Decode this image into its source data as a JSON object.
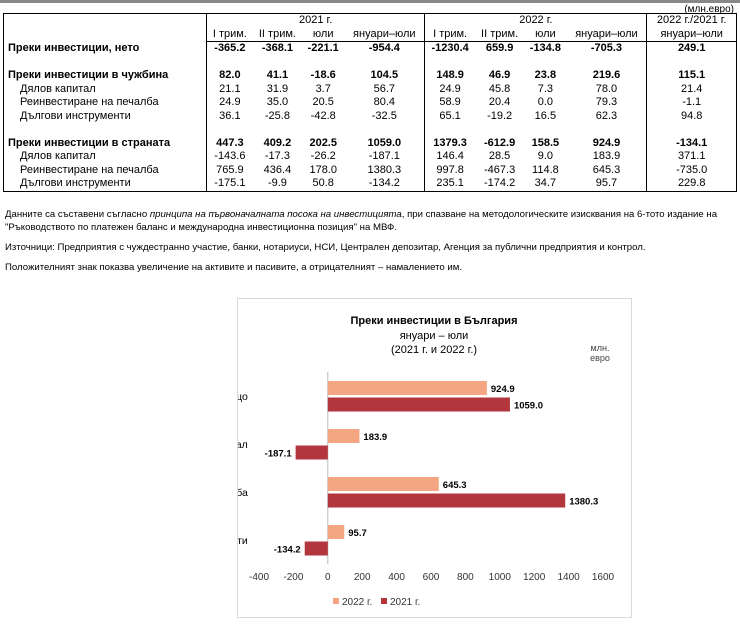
{
  "unit": "(млн.евро)",
  "table": {
    "year_headers": [
      "2021 г.",
      "2022 г.",
      "2022 г./2021 г."
    ],
    "sub_headers": [
      "I трим.",
      "II трим.",
      "юли",
      "януари–юли",
      "I трим.",
      "II трим.",
      "юли",
      "януари–юли",
      "януари–юли"
    ],
    "rows": [
      {
        "label": "Преки инвестиции, нето",
        "bold": true,
        "values": [
          "-365.2",
          "-368.1",
          "-221.1",
          "-954.4",
          "-1230.4",
          "659.9",
          "-134.8",
          "-705.3",
          "249.1"
        ]
      },
      {
        "spacer": true
      },
      {
        "label": "Преки инвестиции в чужбина",
        "bold": true,
        "values": [
          "82.0",
          "41.1",
          "-18.6",
          "104.5",
          "148.9",
          "46.9",
          "23.8",
          "219.6",
          "115.1"
        ]
      },
      {
        "label": "Дялов капитал",
        "values": [
          "21.1",
          "31.9",
          "3.7",
          "56.7",
          "24.9",
          "45.8",
          "7.3",
          "78.0",
          "21.4"
        ]
      },
      {
        "label": "Реинвестиране на печалба",
        "values": [
          "24.9",
          "35.0",
          "20.5",
          "80.4",
          "58.9",
          "20.4",
          "0.0",
          "79.3",
          "-1.1"
        ]
      },
      {
        "label": "Дългови инструменти",
        "values": [
          "36.1",
          "-25.8",
          "-42.8",
          "-32.5",
          "65.1",
          "-19.2",
          "16.5",
          "62.3",
          "94.8"
        ]
      },
      {
        "spacer": true
      },
      {
        "label": "Преки инвестиции в страната",
        "bold": true,
        "values": [
          "447.3",
          "409.2",
          "202.5",
          "1059.0",
          "1379.3",
          "-612.9",
          "158.5",
          "924.9",
          "-134.1"
        ]
      },
      {
        "label": "Дялов капитал",
        "values": [
          "-143.6",
          "-17.3",
          "-26.2",
          "-187.1",
          "146.4",
          "28.5",
          "9.0",
          "183.9",
          "371.1"
        ]
      },
      {
        "label": "Реинвестиране на печалба",
        "values": [
          "765.9",
          "436.4",
          "178.0",
          "1380.3",
          "997.8",
          "-467.3",
          "114.8",
          "645.3",
          "-735.0"
        ]
      },
      {
        "label": "Дългови инструменти",
        "values": [
          "-175.1",
          "-9.9",
          "50.8",
          "-134.2",
          "235.1",
          "-174.2",
          "34.7",
          "95.7",
          "229.8"
        ]
      }
    ]
  },
  "notes": {
    "n1_a": "Данните са съставени съгласно ",
    "n1_em": "принципа на първоначалната посока на инвестицията",
    "n1_b": ", при спазване на методологическите изисквания на 6-тото издание на \"Ръководството по платежен баланс и международна инвестиционна позиция\" на МВФ.",
    "n2": "Източници: Предприятия с чуждестранно участие, банки, нотариуси, НСИ, Централен депозитар, Агенция за публични предприятия и контрол.",
    "n3": "Положителният знак показва увеличение на активите и пасивите, а отрицателният – намалението им."
  },
  "chart_data": {
    "type": "bar",
    "orientation": "horizontal",
    "title": "Преки  инвестиции в България",
    "subtitle1": "януари – юли",
    "subtitle2": "(2021 г. и 2022 г.)",
    "unit_line1": "млн.",
    "unit_line2": "евро",
    "categories": [
      "Общо",
      "Дялов капитал",
      "Реинвестиране на печалба",
      "Дългови инструменти"
    ],
    "series": [
      {
        "name": "2022 г.",
        "color": "#f4a582",
        "values": [
          924.9,
          183.9,
          645.3,
          95.7
        ],
        "labels": [
          "924.9",
          "183.9",
          "645.3",
          "95.7"
        ]
      },
      {
        "name": "2021 г.",
        "color": "#b2363c",
        "values": [
          1059.0,
          -187.1,
          1380.3,
          -134.2
        ],
        "labels": [
          "1059.0",
          "-187.1",
          "1380.3",
          "-134.2"
        ]
      }
    ],
    "xlim": [
      -400,
      1600
    ],
    "xticks": [
      "-400",
      "-200",
      "0",
      "200",
      "400",
      "600",
      "800",
      "1000",
      "1200",
      "1400",
      "1600"
    ],
    "legend": "bottom"
  }
}
